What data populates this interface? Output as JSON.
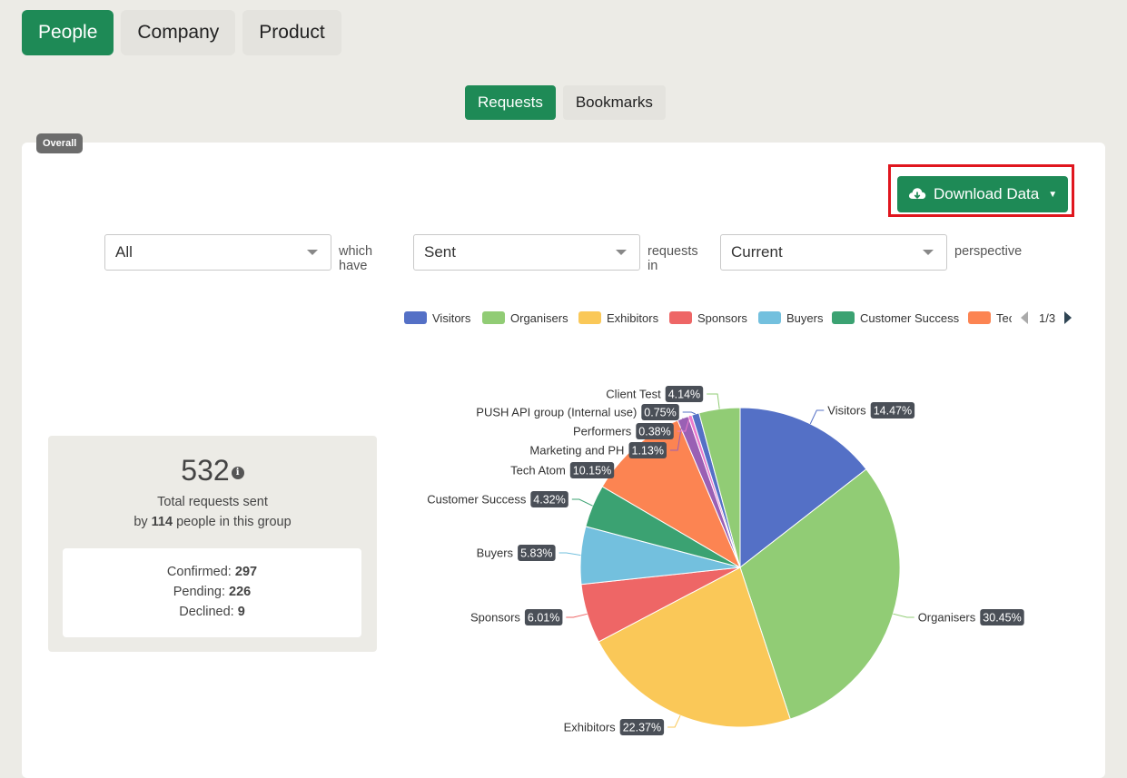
{
  "top_tabs": [
    {
      "label": "People",
      "active": true
    },
    {
      "label": "Company",
      "active": false
    },
    {
      "label": "Product",
      "active": false
    }
  ],
  "sub_tabs": [
    {
      "label": "Requests",
      "active": true
    },
    {
      "label": "Bookmarks",
      "active": false
    }
  ],
  "badge": "Overall",
  "download_button": {
    "label": "Download Data",
    "icon": "cloud-download-icon"
  },
  "filters": {
    "group": "All",
    "which_have": "which have",
    "status": "Sent",
    "requests_in": "requests in",
    "view": "Current",
    "perspective": "perspective"
  },
  "stats": {
    "total": "532",
    "total_label": "Total requests sent",
    "by_prefix": "by",
    "people_count": "114",
    "people_suffix": "people in this group",
    "confirmed_label": "Confirmed:",
    "confirmed": "297",
    "pending_label": "Pending:",
    "pending": "226",
    "declined_label": "Declined:",
    "declined": "9"
  },
  "legend": {
    "page": "1/3",
    "items": [
      "Visitors",
      "Organisers",
      "Exhibitors",
      "Sponsors",
      "Buyers",
      "Customer Success",
      "Tech Atom"
    ]
  },
  "colors": {
    "accent": "#1e8a56",
    "highlight_frame": "#e0161e"
  },
  "chart_data": {
    "type": "pie",
    "unit": "%",
    "slices": [
      {
        "name": "Visitors",
        "value": 14.47,
        "color": "#5470c6"
      },
      {
        "name": "Organisers",
        "value": 30.45,
        "color": "#91cc75"
      },
      {
        "name": "Exhibitors",
        "value": 22.37,
        "color": "#fac858"
      },
      {
        "name": "Sponsors",
        "value": 6.01,
        "color": "#ee6666"
      },
      {
        "name": "Buyers",
        "value": 5.83,
        "color": "#73c0de"
      },
      {
        "name": "Customer Success",
        "value": 4.32,
        "color": "#3ba272"
      },
      {
        "name": "Tech Atom",
        "value": 10.15,
        "color": "#fc8452"
      },
      {
        "name": "Marketing and PH",
        "value": 1.13,
        "color": "#9a60b4"
      },
      {
        "name": "Performers",
        "value": 0.38,
        "color": "#ea7ccc"
      },
      {
        "name": "PUSH API group (Internal use)",
        "value": 0.75,
        "color": "#5470c6"
      },
      {
        "name": "Client Test",
        "value": 4.14,
        "color": "#91cc75"
      }
    ],
    "labels": [
      "14.47%",
      "30.45%",
      "22.37%",
      "6.01%",
      "5.83%",
      "4.32%",
      "10.15%",
      "1.13%",
      "0.38%",
      "0.75%",
      "4.14%"
    ],
    "legend_position": "top-right"
  }
}
